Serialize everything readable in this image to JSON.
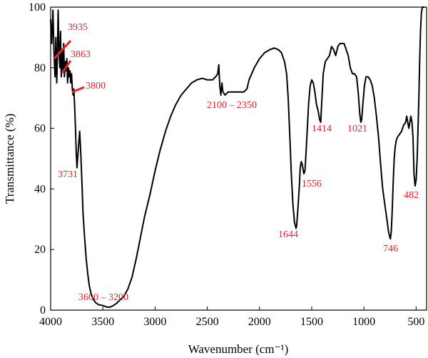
{
  "chart_data": {
    "type": "line",
    "xlabel": "Wavenumber (cm⁻¹)",
    "ylabel": "Transmittance (%)",
    "xlim": [
      4000,
      400
    ],
    "ylim": [
      0,
      100
    ],
    "x_reversed": true,
    "grid": false,
    "line_color": "#000000",
    "annotation_color": "#e8212a",
    "x_ticks": [
      {
        "value": 4000,
        "label": "4000"
      },
      {
        "value": 3500,
        "label": "3500"
      },
      {
        "value": 3000,
        "label": "3000"
      },
      {
        "value": 2500,
        "label": "2500"
      },
      {
        "value": 2000,
        "label": "2000"
      },
      {
        "value": 1500,
        "label": "1500"
      },
      {
        "value": 1000,
        "label": "1000"
      },
      {
        "value": 500,
        "label": "500"
      }
    ],
    "y_ticks": [
      {
        "value": 0,
        "label": "0"
      },
      {
        "value": 20,
        "label": "20"
      },
      {
        "value": 40,
        "label": "40"
      },
      {
        "value": 60,
        "label": "60"
      },
      {
        "value": 80,
        "label": "80"
      },
      {
        "value": 100,
        "label": "100"
      }
    ],
    "series": [
      {
        "points": [
          [
            4000,
            96
          ],
          [
            3990,
            88
          ],
          [
            3978,
            99
          ],
          [
            3968,
            85
          ],
          [
            3958,
            77
          ],
          [
            3950,
            90
          ],
          [
            3942,
            75
          ],
          [
            3935,
            84
          ],
          [
            3928,
            99
          ],
          [
            3920,
            86
          ],
          [
            3912,
            80
          ],
          [
            3905,
            92
          ],
          [
            3898,
            77
          ],
          [
            3890,
            86
          ],
          [
            3882,
            79
          ],
          [
            3875,
            88
          ],
          [
            3868,
            77
          ],
          [
            3860,
            82
          ],
          [
            3852,
            79
          ],
          [
            3845,
            83
          ],
          [
            3838,
            75
          ],
          [
            3830,
            80
          ],
          [
            3822,
            77
          ],
          [
            3815,
            79
          ],
          [
            3808,
            75
          ],
          [
            3800,
            78
          ],
          [
            3792,
            73
          ],
          [
            3785,
            71
          ],
          [
            3778,
            73
          ],
          [
            3770,
            67
          ],
          [
            3762,
            60
          ],
          [
            3755,
            52
          ],
          [
            3748,
            47
          ],
          [
            3740,
            51
          ],
          [
            3731,
            55
          ],
          [
            3722,
            59
          ],
          [
            3712,
            52
          ],
          [
            3700,
            42
          ],
          [
            3690,
            32
          ],
          [
            3675,
            24
          ],
          [
            3660,
            17
          ],
          [
            3645,
            12
          ],
          [
            3630,
            8
          ],
          [
            3610,
            5
          ],
          [
            3590,
            3.5
          ],
          [
            3570,
            2.5
          ],
          [
            3540,
            1.8
          ],
          [
            3500,
            1.5
          ],
          [
            3460,
            1.0
          ],
          [
            3430,
            1.0
          ],
          [
            3400,
            1.5
          ],
          [
            3370,
            2.2
          ],
          [
            3340,
            3.2
          ],
          [
            3300,
            4.5
          ],
          [
            3260,
            7
          ],
          [
            3220,
            11
          ],
          [
            3180,
            17
          ],
          [
            3140,
            24
          ],
          [
            3100,
            31
          ],
          [
            3050,
            38
          ],
          [
            3000,
            46
          ],
          [
            2950,
            53
          ],
          [
            2900,
            59
          ],
          [
            2850,
            64
          ],
          [
            2800,
            68
          ],
          [
            2750,
            71
          ],
          [
            2700,
            73
          ],
          [
            2650,
            75
          ],
          [
            2600,
            76
          ],
          [
            2550,
            76.5
          ],
          [
            2500,
            76
          ],
          [
            2450,
            76
          ],
          [
            2420,
            77
          ],
          [
            2400,
            78
          ],
          [
            2390,
            81
          ],
          [
            2380,
            74
          ],
          [
            2370,
            71
          ],
          [
            2360,
            75
          ],
          [
            2350,
            72
          ],
          [
            2330,
            71
          ],
          [
            2300,
            72
          ],
          [
            2250,
            72
          ],
          [
            2200,
            72
          ],
          [
            2150,
            72
          ],
          [
            2120,
            73
          ],
          [
            2100,
            76
          ],
          [
            2050,
            80
          ],
          [
            2000,
            83
          ],
          [
            1950,
            85
          ],
          [
            1900,
            86
          ],
          [
            1860,
            86.5
          ],
          [
            1820,
            86
          ],
          [
            1790,
            85
          ],
          [
            1760,
            82
          ],
          [
            1740,
            78
          ],
          [
            1725,
            70
          ],
          [
            1710,
            58
          ],
          [
            1695,
            45
          ],
          [
            1680,
            35
          ],
          [
            1665,
            29
          ],
          [
            1650,
            27
          ],
          [
            1644,
            28
          ],
          [
            1635,
            32
          ],
          [
            1620,
            40
          ],
          [
            1610,
            47
          ],
          [
            1600,
            49
          ],
          [
            1590,
            48
          ],
          [
            1575,
            45
          ],
          [
            1565,
            46
          ],
          [
            1556,
            51
          ],
          [
            1545,
            58
          ],
          [
            1530,
            68
          ],
          [
            1515,
            74
          ],
          [
            1500,
            76
          ],
          [
            1485,
            75
          ],
          [
            1470,
            72
          ],
          [
            1455,
            68
          ],
          [
            1440,
            66
          ],
          [
            1425,
            63
          ],
          [
            1414,
            62
          ],
          [
            1405,
            68
          ],
          [
            1390,
            78
          ],
          [
            1370,
            82
          ],
          [
            1350,
            83
          ],
          [
            1330,
            84
          ],
          [
            1310,
            87
          ],
          [
            1290,
            86
          ],
          [
            1270,
            84
          ],
          [
            1250,
            87
          ],
          [
            1230,
            88
          ],
          [
            1210,
            88
          ],
          [
            1190,
            88
          ],
          [
            1170,
            86
          ],
          [
            1150,
            84
          ],
          [
            1130,
            80
          ],
          [
            1110,
            78
          ],
          [
            1090,
            78
          ],
          [
            1070,
            77
          ],
          [
            1055,
            72
          ],
          [
            1040,
            65
          ],
          [
            1030,
            62
          ],
          [
            1021,
            63
          ],
          [
            1010,
            68
          ],
          [
            995,
            74
          ],
          [
            980,
            77
          ],
          [
            960,
            77
          ],
          [
            940,
            76
          ],
          [
            920,
            74
          ],
          [
            900,
            70
          ],
          [
            880,
            64
          ],
          [
            860,
            57
          ],
          [
            840,
            48
          ],
          [
            820,
            40
          ],
          [
            800,
            35
          ],
          [
            780,
            30
          ],
          [
            765,
            26
          ],
          [
            752,
            24
          ],
          [
            746,
            23.5
          ],
          [
            738,
            26
          ],
          [
            730,
            32
          ],
          [
            720,
            42
          ],
          [
            710,
            50
          ],
          [
            700,
            54
          ],
          [
            690,
            56
          ],
          [
            680,
            57
          ],
          [
            670,
            57.5
          ],
          [
            660,
            58
          ],
          [
            650,
            58.5
          ],
          [
            640,
            59
          ],
          [
            630,
            60
          ],
          [
            620,
            61
          ],
          [
            600,
            62
          ],
          [
            590,
            64
          ],
          [
            580,
            62
          ],
          [
            570,
            60
          ],
          [
            560,
            62
          ],
          [
            550,
            64
          ],
          [
            540,
            62
          ],
          [
            530,
            57
          ],
          [
            520,
            45
          ],
          [
            510,
            41
          ],
          [
            500,
            43
          ],
          [
            490,
            50
          ],
          [
            482,
            60
          ],
          [
            474,
            70
          ],
          [
            466,
            82
          ],
          [
            458,
            92
          ],
          [
            450,
            98
          ],
          [
            440,
            100
          ],
          [
            430,
            100
          ],
          [
            420,
            100
          ]
        ]
      }
    ],
    "annotations": [
      {
        "label": "3935"
      },
      {
        "label": "3863"
      },
      {
        "label": "3800"
      },
      {
        "label": "2100 – 2350"
      },
      {
        "label": "1414"
      },
      {
        "label": "1021"
      },
      {
        "label": "3731"
      },
      {
        "label": "1556"
      },
      {
        "label": "482"
      },
      {
        "label": "1644"
      },
      {
        "label": "746"
      },
      {
        "label": "3600 – 3200"
      }
    ]
  }
}
